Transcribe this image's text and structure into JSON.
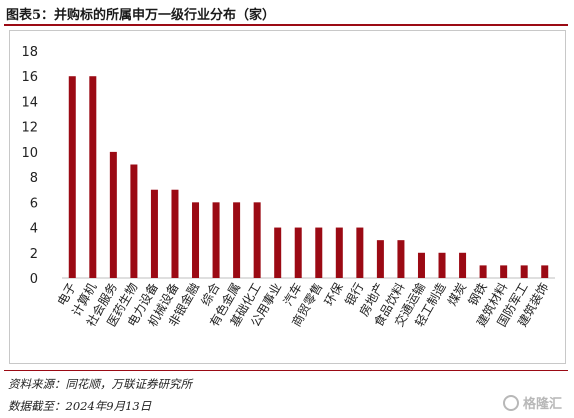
{
  "title": "图表5：并购标的所属申万一级行业分布（家）",
  "source_note": "资料来源：同花顺，万联证券研究所",
  "date_note": "数据截至：2024年9月13日",
  "watermark": {
    "icon": "gelonghui-logo-icon",
    "text": "格隆汇"
  },
  "colors": {
    "bar": "#9b0a14",
    "accent": "#9b0a14",
    "axis": "#bfbfbf"
  },
  "chart_data": {
    "type": "bar",
    "title": "",
    "xlabel": "",
    "ylabel": "",
    "ylim": [
      0,
      18
    ],
    "yticks": [
      0,
      2,
      4,
      6,
      8,
      10,
      12,
      14,
      16,
      18
    ],
    "grid": false,
    "legend": "none",
    "categories": [
      "电子",
      "计算机",
      "社会服务",
      "医药生物",
      "电力设备",
      "机械设备",
      "非银金融",
      "综合",
      "有色金属",
      "基础化工",
      "公用事业",
      "汽车",
      "商贸零售",
      "环保",
      "银行",
      "房地产",
      "食品饮料",
      "交通运输",
      "轻工制造",
      "煤炭",
      "钢铁",
      "建筑材料",
      "国防军工",
      "建筑装饰"
    ],
    "values": [
      16,
      16,
      10,
      9,
      7,
      7,
      6,
      6,
      6,
      6,
      4,
      4,
      4,
      4,
      4,
      3,
      3,
      2,
      2,
      2,
      1,
      1,
      1,
      1
    ]
  }
}
